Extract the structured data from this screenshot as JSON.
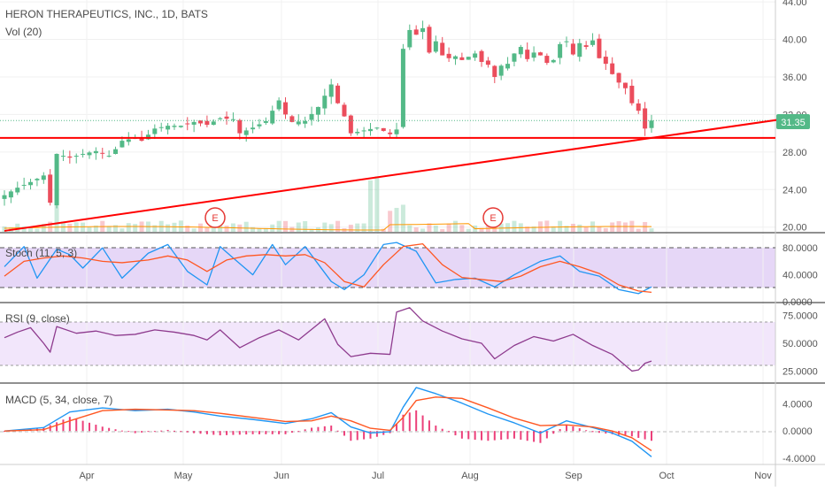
{
  "chart_data": [
    {
      "type": "candlestick",
      "title": "HERON THERAPEUTICS, INC., 1D, BATS",
      "volume_label": "Vol (20)",
      "last_price_label": "31.35",
      "y_ticks": [
        "44.00",
        "40.00",
        "36.00",
        "32.00",
        "28.00",
        "24.00",
        "20.00"
      ],
      "ylim": [
        19.5,
        44.2
      ],
      "x_ticks": [
        "Apr",
        "May",
        "Jun",
        "Jul",
        "Aug",
        "Sep",
        "Oct",
        "Nov"
      ],
      "earnings_markers": [
        "E",
        "E"
      ],
      "colors": {
        "up": "#53b987",
        "down": "#eb4d5c",
        "lines": "#ff0000"
      },
      "price_path": [
        [
          0,
          23.4
        ],
        [
          2,
          24.2
        ],
        [
          4,
          24.8
        ],
        [
          6,
          25.5
        ],
        [
          7,
          22.6
        ],
        [
          8,
          27.8
        ],
        [
          10,
          27.4
        ],
        [
          12,
          27.8
        ],
        [
          14,
          28.1
        ],
        [
          16,
          27.6
        ],
        [
          17,
          28.3
        ],
        [
          18,
          29.2
        ],
        [
          20,
          29.5
        ],
        [
          21,
          29.2
        ],
        [
          23,
          30.5
        ],
        [
          25,
          30.8
        ],
        [
          27,
          30.8
        ],
        [
          29,
          31.2
        ],
        [
          31,
          30.9
        ],
        [
          33,
          31.6
        ],
        [
          35,
          31.5
        ],
        [
          36,
          30.0
        ],
        [
          38,
          30.6
        ],
        [
          40,
          31.3
        ],
        [
          42,
          33.5
        ],
        [
          43,
          32.0
        ],
        [
          44,
          31.2
        ],
        [
          46,
          31.3
        ],
        [
          48,
          32.8
        ],
        [
          50,
          35.2
        ],
        [
          51,
          33.2
        ],
        [
          52,
          31.8
        ],
        [
          53,
          30.0
        ],
        [
          55,
          30.3
        ],
        [
          57,
          30.6
        ],
        [
          59,
          29.9
        ],
        [
          60,
          30.4
        ],
        [
          61,
          39.0
        ],
        [
          62,
          41.0
        ],
        [
          63,
          40.5
        ],
        [
          64,
          41.2
        ],
        [
          65,
          38.6
        ],
        [
          66,
          39.8
        ],
        [
          67,
          38.3
        ],
        [
          68,
          38.0
        ],
        [
          69,
          38.2
        ],
        [
          70,
          37.8
        ],
        [
          72,
          38.5
        ],
        [
          73,
          37.6
        ],
        [
          74,
          37.3
        ],
        [
          75,
          36.0
        ],
        [
          76,
          37.2
        ],
        [
          77,
          37.4
        ],
        [
          78,
          38.5
        ],
        [
          79,
          39.2
        ],
        [
          80,
          37.9
        ],
        [
          81,
          38.6
        ],
        [
          82,
          38.3
        ],
        [
          83,
          37.5
        ],
        [
          84,
          37.8
        ],
        [
          85,
          39.5
        ],
        [
          86,
          39.8
        ],
        [
          87,
          38.4
        ],
        [
          88,
          39.6
        ],
        [
          89,
          39.2
        ],
        [
          90,
          39.9
        ],
        [
          91,
          38.0
        ],
        [
          92,
          37.4
        ],
        [
          93,
          36.3
        ],
        [
          94,
          35.4
        ],
        [
          95,
          34.8
        ],
        [
          96,
          33.2
        ],
        [
          97,
          32.4
        ],
        [
          98,
          30.5
        ],
        [
          99,
          31.35
        ]
      ],
      "support_level": 29.5,
      "trendline": {
        "from": [
          0,
          19.6
        ],
        "to": [
          122,
          31.8
        ]
      }
    },
    {
      "type": "line",
      "title": "Stoch (11, 5, 3)",
      "y_ticks": [
        "80.0000",
        "40.0000",
        "0.0000"
      ],
      "ylim": [
        0,
        100
      ],
      "bands": [
        20,
        80
      ],
      "k": [
        [
          0,
          52
        ],
        [
          3,
          82
        ],
        [
          5,
          35
        ],
        [
          8,
          78
        ],
        [
          10,
          70
        ],
        [
          12,
          50
        ],
        [
          15,
          80
        ],
        [
          18,
          35
        ],
        [
          22,
          72
        ],
        [
          25,
          85
        ],
        [
          28,
          45
        ],
        [
          31,
          25
        ],
        [
          33,
          82
        ],
        [
          35,
          65
        ],
        [
          38,
          40
        ],
        [
          41,
          85
        ],
        [
          43,
          55
        ],
        [
          46,
          82
        ],
        [
          50,
          30
        ],
        [
          52,
          18
        ],
        [
          55,
          40
        ],
        [
          58,
          85
        ],
        [
          60,
          88
        ],
        [
          63,
          75
        ],
        [
          66,
          28
        ],
        [
          69,
          33
        ],
        [
          72,
          35
        ],
        [
          75,
          22
        ],
        [
          78,
          40
        ],
        [
          82,
          60
        ],
        [
          85,
          68
        ],
        [
          88,
          45
        ],
        [
          91,
          38
        ],
        [
          94,
          18
        ],
        [
          97,
          12
        ],
        [
          99,
          22
        ]
      ],
      "d": [
        [
          0,
          38
        ],
        [
          3,
          60
        ],
        [
          6,
          65
        ],
        [
          9,
          68
        ],
        [
          12,
          65
        ],
        [
          15,
          60
        ],
        [
          18,
          58
        ],
        [
          22,
          62
        ],
        [
          25,
          68
        ],
        [
          28,
          62
        ],
        [
          31,
          45
        ],
        [
          34,
          62
        ],
        [
          37,
          68
        ],
        [
          40,
          70
        ],
        [
          43,
          68
        ],
        [
          46,
          70
        ],
        [
          49,
          58
        ],
        [
          52,
          30
        ],
        [
          55,
          22
        ],
        [
          58,
          55
        ],
        [
          61,
          82
        ],
        [
          64,
          86
        ],
        [
          67,
          55
        ],
        [
          70,
          36
        ],
        [
          73,
          33
        ],
        [
          76,
          30
        ],
        [
          79,
          38
        ],
        [
          82,
          52
        ],
        [
          85,
          60
        ],
        [
          88,
          52
        ],
        [
          91,
          42
        ],
        [
          94,
          25
        ],
        [
          97,
          16
        ],
        [
          99,
          14
        ]
      ]
    },
    {
      "type": "line",
      "title": "RSI (9, close)",
      "y_ticks": [
        "75.0000",
        "50.0000",
        "25.0000"
      ],
      "ylim": [
        15,
        85
      ],
      "bands": [
        30,
        70
      ],
      "values": [
        [
          0,
          55
        ],
        [
          2,
          60
        ],
        [
          4,
          64
        ],
        [
          6,
          50
        ],
        [
          7,
          42
        ],
        [
          8,
          65
        ],
        [
          11,
          59
        ],
        [
          14,
          61
        ],
        [
          17,
          57
        ],
        [
          20,
          58
        ],
        [
          23,
          62
        ],
        [
          26,
          60
        ],
        [
          29,
          57
        ],
        [
          31,
          53
        ],
        [
          33,
          62
        ],
        [
          36,
          46
        ],
        [
          39,
          55
        ],
        [
          42,
          62
        ],
        [
          45,
          53
        ],
        [
          49,
          72
        ],
        [
          51,
          49
        ],
        [
          53,
          38
        ],
        [
          56,
          41
        ],
        [
          59,
          40
        ],
        [
          60,
          78
        ],
        [
          62,
          82
        ],
        [
          64,
          70
        ],
        [
          67,
          61
        ],
        [
          70,
          54
        ],
        [
          73,
          50
        ],
        [
          75,
          36
        ],
        [
          78,
          48
        ],
        [
          81,
          56
        ],
        [
          84,
          52
        ],
        [
          87,
          58
        ],
        [
          90,
          48
        ],
        [
          93,
          40
        ],
        [
          96,
          25
        ],
        [
          97,
          26
        ],
        [
          98,
          32
        ],
        [
          99,
          34
        ]
      ]
    },
    {
      "type": "bar_line",
      "title": "MACD (5, 34, close, 7)",
      "y_ticks": [
        "4.0000",
        "0.0000",
        "-4.0000"
      ],
      "ylim": [
        -4.8,
        6.8
      ],
      "macd": [
        [
          0,
          0
        ],
        [
          6,
          0.5
        ],
        [
          10,
          2.8
        ],
        [
          15,
          3.4
        ],
        [
          20,
          3.0
        ],
        [
          25,
          3.2
        ],
        [
          29,
          2.8
        ],
        [
          33,
          2.2
        ],
        [
          38,
          1.7
        ],
        [
          43,
          1.1
        ],
        [
          47,
          1.8
        ],
        [
          50,
          2.7
        ],
        [
          53,
          0.6
        ],
        [
          56,
          -0.3
        ],
        [
          59,
          -0.1
        ],
        [
          61,
          3.5
        ],
        [
          63,
          6.4
        ],
        [
          66,
          5.5
        ],
        [
          70,
          4.1
        ],
        [
          74,
          2.5
        ],
        [
          78,
          1.2
        ],
        [
          82,
          -0.3
        ],
        [
          86,
          1.5
        ],
        [
          90,
          0.5
        ],
        [
          93,
          -0.3
        ],
        [
          96,
          -1.5
        ],
        [
          99,
          -3.8
        ]
      ],
      "signal": [
        [
          0,
          0
        ],
        [
          6,
          0.2
        ],
        [
          10,
          1.5
        ],
        [
          15,
          3.0
        ],
        [
          20,
          3.2
        ],
        [
          25,
          3.1
        ],
        [
          29,
          3.0
        ],
        [
          33,
          2.6
        ],
        [
          38,
          2.0
        ],
        [
          43,
          1.4
        ],
        [
          47,
          1.5
        ],
        [
          50,
          2.2
        ],
        [
          53,
          1.5
        ],
        [
          56,
          0.4
        ],
        [
          59,
          0.1
        ],
        [
          61,
          2.0
        ],
        [
          63,
          4.5
        ],
        [
          66,
          5.0
        ],
        [
          70,
          4.8
        ],
        [
          74,
          3.4
        ],
        [
          78,
          1.9
        ],
        [
          82,
          0.8
        ],
        [
          86,
          0.9
        ],
        [
          90,
          0.6
        ],
        [
          93,
          0.0
        ],
        [
          96,
          -1.0
        ],
        [
          99,
          -2.9
        ]
      ]
    }
  ]
}
